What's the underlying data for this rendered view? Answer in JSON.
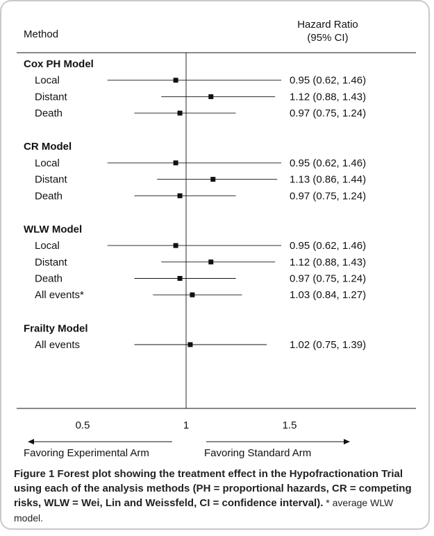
{
  "header": {
    "method_label": "Method",
    "hr_label_line1": "Hazard Ratio",
    "hr_label_line2": "(95% CI)"
  },
  "chart_data": {
    "type": "forest",
    "x_ticks": [
      0.5,
      1,
      1.5
    ],
    "x_tick_labels": [
      "0.5",
      "1",
      "1.5"
    ],
    "reference_line": 1,
    "favoring_left": "Favoring Experimental Arm",
    "favoring_right": "Favoring Standard Arm",
    "groups": [
      {
        "name": "Cox PH Model",
        "rows": [
          {
            "label": "Local",
            "hr": 0.95,
            "lo": 0.62,
            "hi": 1.46,
            "text": "0.95 (0.62, 1.46)"
          },
          {
            "label": "Distant",
            "hr": 1.12,
            "lo": 0.88,
            "hi": 1.43,
            "text": "1.12 (0.88, 1.43)"
          },
          {
            "label": "Death",
            "hr": 0.97,
            "lo": 0.75,
            "hi": 1.24,
            "text": "0.97 (0.75, 1.24)"
          }
        ]
      },
      {
        "name": "CR Model",
        "rows": [
          {
            "label": "Local",
            "hr": 0.95,
            "lo": 0.62,
            "hi": 1.46,
            "text": "0.95 (0.62, 1.46)"
          },
          {
            "label": "Distant",
            "hr": 1.13,
            "lo": 0.86,
            "hi": 1.44,
            "text": "1.13 (0.86, 1.44)"
          },
          {
            "label": "Death",
            "hr": 0.97,
            "lo": 0.75,
            "hi": 1.24,
            "text": "0.97 (0.75, 1.24)"
          }
        ]
      },
      {
        "name": "WLW Model",
        "rows": [
          {
            "label": "Local",
            "hr": 0.95,
            "lo": 0.62,
            "hi": 1.46,
            "text": "0.95 (0.62, 1.46)"
          },
          {
            "label": "Distant",
            "hr": 1.12,
            "lo": 0.88,
            "hi": 1.43,
            "text": "1.12 (0.88, 1.43)"
          },
          {
            "label": "Death",
            "hr": 0.97,
            "lo": 0.75,
            "hi": 1.24,
            "text": "0.97 (0.75, 1.24)"
          },
          {
            "label": "All events*",
            "hr": 1.03,
            "lo": 0.84,
            "hi": 1.27,
            "text": "1.03 (0.84, 1.27)"
          }
        ]
      },
      {
        "name": "Frailty Model",
        "rows": [
          {
            "label": "All events",
            "hr": 1.02,
            "lo": 0.75,
            "hi": 1.39,
            "text": "1.02 (0.75, 1.39)"
          }
        ]
      }
    ]
  },
  "caption": {
    "label": "Figure 1",
    "bold_text": " Forest plot showing the treatment effect in the Hypofractionation Trial using each of the analysis methods (PH = proportional hazards, CR = competing risks, WLW = Wei, Lin and Weissfeld, CI = confidence interval).",
    "note": " * average WLW model."
  },
  "colors": {
    "ink": "#111111",
    "border": "#c9c9c9"
  }
}
